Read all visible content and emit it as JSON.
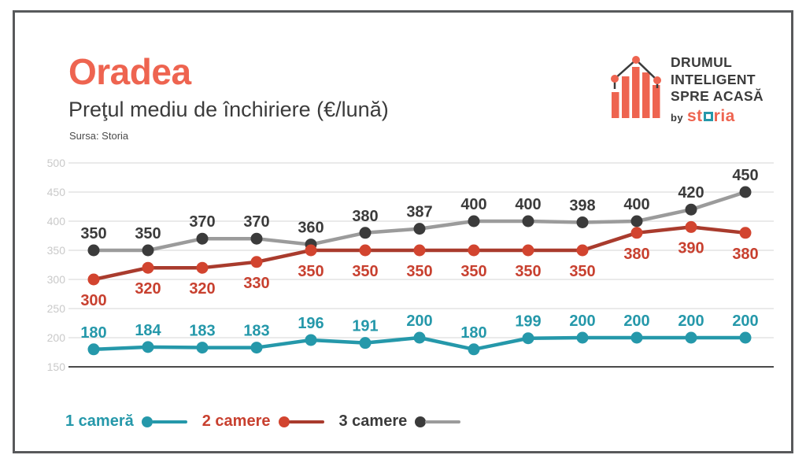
{
  "header": {
    "title": "Oradea",
    "subtitle": "Preţul mediu de închiriere (€/lună)",
    "source": "Sursa: Storia"
  },
  "logo": {
    "line1": "DRUMUL",
    "line2": "INTELIGENT",
    "line3": "SPRE ACASĂ",
    "by": "by",
    "brand_st": "st",
    "brand_ria": "ria"
  },
  "colors": {
    "accent": "#EE6450",
    "dark": "#3B3B3B",
    "teal": "#2598AA",
    "grid": "#E4E4E4",
    "axis": "#4A4A4A",
    "tick_label": "#C9C9C9"
  },
  "chart_data": {
    "type": "line",
    "title": "Preţul mediu de închiriere (€/lună)",
    "xlabel": "",
    "ylabel": "€/lună",
    "ylim": [
      150,
      500
    ],
    "yticks": [
      150,
      200,
      250,
      300,
      350,
      400,
      450,
      500
    ],
    "grid": true,
    "legend_position": "bottom",
    "x_labels_shown": false,
    "series": [
      {
        "name": "1 cameră",
        "values": [
          180,
          184,
          183,
          183,
          196,
          191,
          200,
          180,
          199,
          200,
          200,
          200,
          200
        ],
        "line_color": "#2598AA",
        "dot_color": "#2598AA",
        "label_color": "#2598AA",
        "label_position": "above"
      },
      {
        "name": "2 camere",
        "values": [
          300,
          320,
          320,
          330,
          350,
          350,
          350,
          350,
          350,
          350,
          380,
          390,
          380
        ],
        "line_color": "#A93B2D",
        "dot_color": "#D2442F",
        "label_color": "#C8402F",
        "label_position": "below"
      },
      {
        "name": "3 camere",
        "values": [
          350,
          350,
          370,
          370,
          360,
          380,
          387,
          400,
          400,
          398,
          400,
          420,
          450
        ],
        "line_color": "#9B9B9B",
        "dot_color": "#3B3B3B",
        "label_color": "#3B3B3B",
        "label_position": "above"
      }
    ]
  },
  "legend": {
    "items": [
      {
        "label": "1 cameră"
      },
      {
        "label": "2 camere"
      },
      {
        "label": "3 camere"
      }
    ]
  }
}
